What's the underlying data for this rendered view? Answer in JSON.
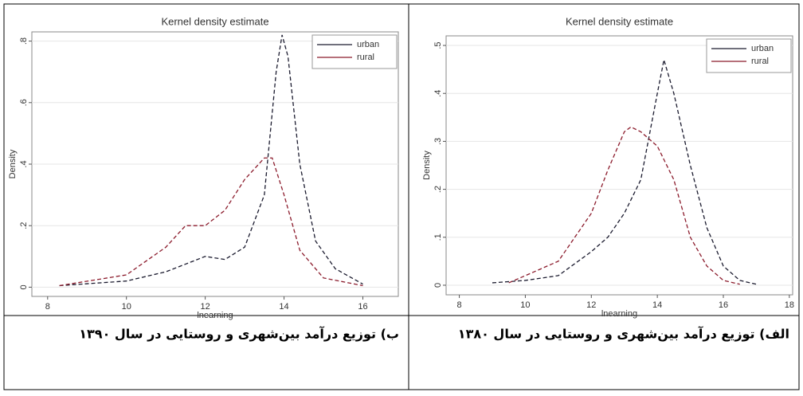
{
  "chart_data": [
    {
      "type": "line",
      "title": "Kernel density estimate",
      "ylabel": "Density",
      "xlabel": "lnearning",
      "caption": "ب) توزیع درآمد بین‌شهری و روستایی در سال ۱۳۹۰",
      "xlim": [
        7.6,
        16.9
      ],
      "xticks": [
        8,
        10,
        12,
        14,
        16
      ],
      "ylim": [
        -0.03,
        0.83
      ],
      "yticks": [
        0,
        {
          "value": 0.2,
          "label": ".2"
        },
        {
          "value": 0.4,
          "label": ".4"
        },
        {
          "value": 0.6,
          "label": ".6"
        },
        {
          "value": 0.8,
          "label": ".8"
        }
      ],
      "grid": true,
      "legend": "upper right",
      "series": [
        {
          "name": "urban",
          "color": "#1a1a2e",
          "x": [
            8.3,
            10,
            11,
            12,
            12.5,
            13,
            13.5,
            13.8,
            13.95,
            14.1,
            14.4,
            14.8,
            15.3,
            16
          ],
          "values": [
            0.005,
            0.02,
            0.05,
            0.1,
            0.09,
            0.13,
            0.3,
            0.7,
            0.82,
            0.75,
            0.4,
            0.15,
            0.06,
            0.01
          ]
        },
        {
          "name": "rural",
          "color": "#8b1a2b",
          "x": [
            8.3,
            10,
            11,
            11.5,
            12,
            12.5,
            13,
            13.5,
            13.7,
            14,
            14.4,
            15,
            16
          ],
          "values": [
            0.005,
            0.04,
            0.13,
            0.2,
            0.2,
            0.25,
            0.35,
            0.42,
            0.42,
            0.3,
            0.12,
            0.03,
            0.005
          ]
        }
      ]
    },
    {
      "type": "line",
      "title": "Kernel density estimate",
      "ylabel": "Density",
      "xlabel": "lnearning",
      "caption": "الف) توزیع درآمد بین‌شهری و روستایی در سال ۱۳۸۰",
      "xlim": [
        7.6,
        18.1
      ],
      "xticks": [
        8,
        10,
        12,
        14,
        16,
        18
      ],
      "ylim": [
        -0.02,
        0.52
      ],
      "yticks": [
        0,
        {
          "value": 0.1,
          "label": ".1"
        },
        {
          "value": 0.2,
          "label": ".2"
        },
        {
          "value": 0.3,
          "label": ".3"
        },
        {
          "value": 0.4,
          "label": ".4"
        },
        {
          "value": 0.5,
          "label": ".5"
        }
      ],
      "grid": true,
      "legend": "upper right",
      "series": [
        {
          "name": "urban",
          "color": "#1a1a2e",
          "x": [
            9,
            10,
            11,
            12,
            12.5,
            13,
            13.5,
            14,
            14.2,
            14.5,
            15,
            15.5,
            16,
            16.5,
            17
          ],
          "values": [
            0.005,
            0.01,
            0.02,
            0.07,
            0.1,
            0.15,
            0.22,
            0.4,
            0.47,
            0.4,
            0.25,
            0.12,
            0.04,
            0.01,
            0.002
          ]
        },
        {
          "name": "rural",
          "color": "#8b1a2b",
          "x": [
            9.5,
            10,
            11,
            11.5,
            12,
            12.5,
            13,
            13.2,
            13.5,
            14,
            14.5,
            15,
            15.5,
            16,
            16.5
          ],
          "values": [
            0.005,
            0.02,
            0.05,
            0.1,
            0.15,
            0.24,
            0.32,
            0.33,
            0.32,
            0.29,
            0.22,
            0.1,
            0.04,
            0.01,
            0.002
          ]
        }
      ]
    }
  ]
}
